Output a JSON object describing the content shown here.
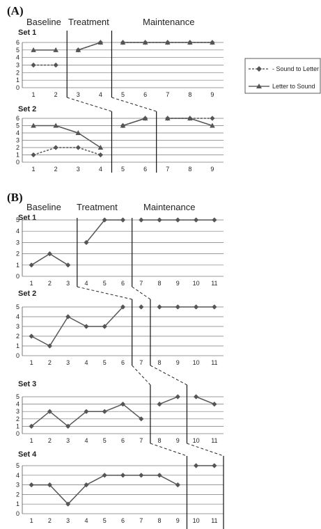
{
  "panels": [
    {
      "label": "(A)",
      "phases": [
        "Baseline",
        "Treatment",
        "Maintenance"
      ],
      "legend": [
        "Sound to Letter",
        "Letter to Sound"
      ]
    },
    {
      "label": "(B)",
      "phases": [
        "Baseline",
        "Treatment",
        "Maintenance"
      ]
    }
  ],
  "chart_data": [
    {
      "panel": "(A)",
      "title": "Set 1",
      "type": "line",
      "x": [
        1,
        2,
        3,
        4,
        5,
        6,
        7,
        8,
        9
      ],
      "ylim": [
        0,
        6
      ],
      "yticks": [
        0,
        1,
        2,
        3,
        4,
        5,
        6
      ],
      "series": [
        {
          "name": "Sound to Letter",
          "marker": "diamond",
          "style": "dashed",
          "values": [
            3,
            3,
            5,
            6,
            6,
            6,
            6,
            6,
            6
          ]
        },
        {
          "name": "Letter to Sound",
          "marker": "triangle",
          "style": "solid",
          "values": [
            5,
            5,
            5,
            6,
            6,
            6,
            6,
            6,
            6
          ]
        }
      ],
      "phase_breaks_after": [
        2,
        4
      ]
    },
    {
      "panel": "(A)",
      "title": "Set 2",
      "type": "line",
      "x": [
        1,
        2,
        3,
        4,
        5,
        6,
        7,
        8,
        9
      ],
      "ylim": [
        0,
        6
      ],
      "yticks": [
        0,
        1,
        2,
        3,
        4,
        5,
        6
      ],
      "series": [
        {
          "name": "Sound to Letter",
          "marker": "diamond",
          "style": "dashed",
          "values": [
            1,
            2,
            2,
            1,
            5,
            6,
            6,
            6,
            6
          ]
        },
        {
          "name": "Letter to Sound",
          "marker": "triangle",
          "style": "solid",
          "values": [
            5,
            5,
            4,
            2,
            5,
            6,
            6,
            6,
            5
          ]
        }
      ],
      "phase_breaks_after": [
        4,
        6
      ]
    },
    {
      "panel": "(B)",
      "title": "Set 1",
      "type": "line",
      "x": [
        1,
        2,
        3,
        4,
        5,
        6,
        7,
        8,
        9,
        10,
        11
      ],
      "ylim": [
        0,
        5
      ],
      "yticks": [
        0,
        1,
        2,
        3,
        4,
        5
      ],
      "series": [
        {
          "marker": "diamond",
          "style": "solid",
          "values": [
            1,
            2,
            1,
            3,
            5,
            5,
            5,
            5,
            5,
            5,
            5
          ]
        }
      ],
      "phase_breaks_after": [
        3,
        6
      ]
    },
    {
      "panel": "(B)",
      "title": "Set 2",
      "type": "line",
      "x": [
        1,
        2,
        3,
        4,
        5,
        6,
        7,
        8,
        9,
        10,
        11
      ],
      "ylim": [
        0,
        5
      ],
      "yticks": [
        0,
        1,
        2,
        3,
        4,
        5
      ],
      "series": [
        {
          "marker": "diamond",
          "style": "solid",
          "values": [
            2,
            1,
            4,
            3,
            3,
            5,
            5,
            5,
            5,
            5,
            5
          ]
        }
      ],
      "phase_breaks_after": [
        6,
        7
      ]
    },
    {
      "panel": "(B)",
      "title": "Set 3",
      "type": "line",
      "x": [
        1,
        2,
        3,
        4,
        5,
        6,
        7,
        8,
        9,
        10,
        11
      ],
      "ylim": [
        0,
        5
      ],
      "yticks": [
        0,
        1,
        2,
        3,
        4,
        5
      ],
      "series": [
        {
          "marker": "diamond",
          "style": "solid",
          "values": [
            1,
            3,
            1,
            3,
            3,
            4,
            2,
            4,
            5,
            5,
            4
          ]
        }
      ],
      "phase_breaks_after": [
        7,
        9
      ]
    },
    {
      "panel": "(B)",
      "title": "Set 4",
      "type": "line",
      "x": [
        1,
        2,
        3,
        4,
        5,
        6,
        7,
        8,
        9,
        10,
        11
      ],
      "ylim": [
        0,
        5
      ],
      "yticks": [
        0,
        1,
        2,
        3,
        4,
        5
      ],
      "series": [
        {
          "marker": "diamond",
          "style": "solid",
          "values": [
            3,
            3,
            1,
            3,
            4,
            4,
            4,
            4,
            3,
            5,
            5
          ]
        }
      ],
      "phase_breaks_after": [
        9,
        11
      ]
    }
  ]
}
